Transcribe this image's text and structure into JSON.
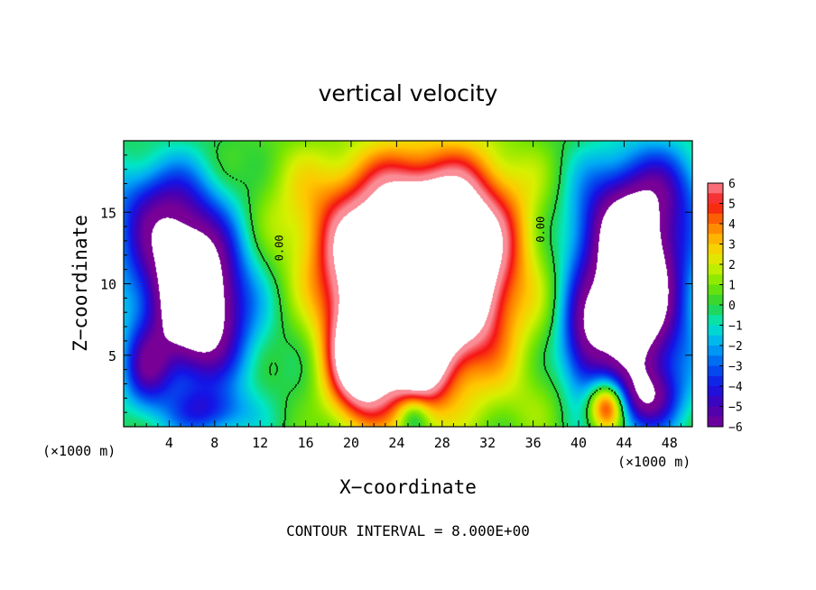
{
  "chart_data": {
    "type": "heatmap",
    "title": "vertical velocity",
    "xlabel": "X−coordinate",
    "ylabel": "Z−coordinate",
    "x_unit": "(×1000 m)",
    "x_unit_right": "(×1000 m)",
    "footer": "CONTOUR INTERVAL = 8.000E+00",
    "xlim": [
      0,
      50
    ],
    "ylim": [
      0,
      20
    ],
    "x_ticks": [
      4,
      8,
      12,
      16,
      20,
      24,
      28,
      32,
      36,
      40,
      44,
      48
    ],
    "y_ticks": [
      5,
      10,
      15
    ],
    "colorbar": {
      "min": -6,
      "max": 6,
      "tick_labels": [
        "6",
        "5",
        "4",
        "3",
        "2",
        "1",
        "0",
        "−1",
        "−2",
        "−3",
        "−4",
        "−5",
        "−6"
      ]
    },
    "contour_labels": [
      {
        "text": "0.00",
        "x": 14,
        "y": 12.5
      },
      {
        "text": "0.00",
        "x": 37,
        "y": 13.8
      }
    ],
    "blobs": [
      {
        "x": 28.5,
        "y": 10,
        "sx": 4.2,
        "sy": 4.8,
        "v": 10
      },
      {
        "x": 21,
        "y": 4.5,
        "sx": 2.2,
        "sy": 3,
        "v": 9
      },
      {
        "x": 26,
        "y": 4.5,
        "sx": 1.8,
        "sy": 3,
        "v": 5
      },
      {
        "x": 23.5,
        "y": 13.5,
        "sx": 6,
        "sy": 3.5,
        "v": 4.5
      },
      {
        "x": 20,
        "y": 10,
        "sx": 2.5,
        "sy": 3,
        "v": 3.5
      },
      {
        "x": 26,
        "y": 16.5,
        "sx": 8,
        "sy": 3,
        "v": 2
      },
      {
        "x": 42.5,
        "y": 1.5,
        "sx": 1.2,
        "sy": 1.3,
        "v": 7
      },
      {
        "x": 6.5,
        "y": 8,
        "sx": 3,
        "sy": 3.5,
        "v": -9
      },
      {
        "x": 4.5,
        "y": 13,
        "sx": 3.5,
        "sy": 3,
        "v": -5
      },
      {
        "x": 2,
        "y": 4,
        "sx": 1.5,
        "sy": 2,
        "v": -4
      },
      {
        "x": 7.5,
        "y": 1,
        "sx": 2.5,
        "sy": 1.2,
        "v": -3
      },
      {
        "x": 3,
        "y": 16,
        "sx": 3,
        "sy": 2,
        "v": -2
      },
      {
        "x": 45,
        "y": 8.5,
        "sx": 3,
        "sy": 4.5,
        "v": -9
      },
      {
        "x": 44,
        "y": 14.5,
        "sx": 3.5,
        "sy": 3,
        "v": -5
      },
      {
        "x": 40.5,
        "y": 6,
        "sx": 1.5,
        "sy": 3,
        "v": -4
      },
      {
        "x": 46,
        "y": 2,
        "sx": 2,
        "sy": 1.5,
        "v": -4
      },
      {
        "x": 25.5,
        "y": 0.8,
        "sx": 1,
        "sy": 1,
        "v": -3
      },
      {
        "x": 48,
        "y": 17,
        "sx": 2.5,
        "sy": 2,
        "v": -2
      },
      {
        "x": 36,
        "y": 1.5,
        "sx": 3,
        "sy": 2,
        "v": 0.8
      },
      {
        "x": 14,
        "y": 17,
        "sx": 2.5,
        "sy": 4,
        "v": 0.3
      }
    ]
  }
}
